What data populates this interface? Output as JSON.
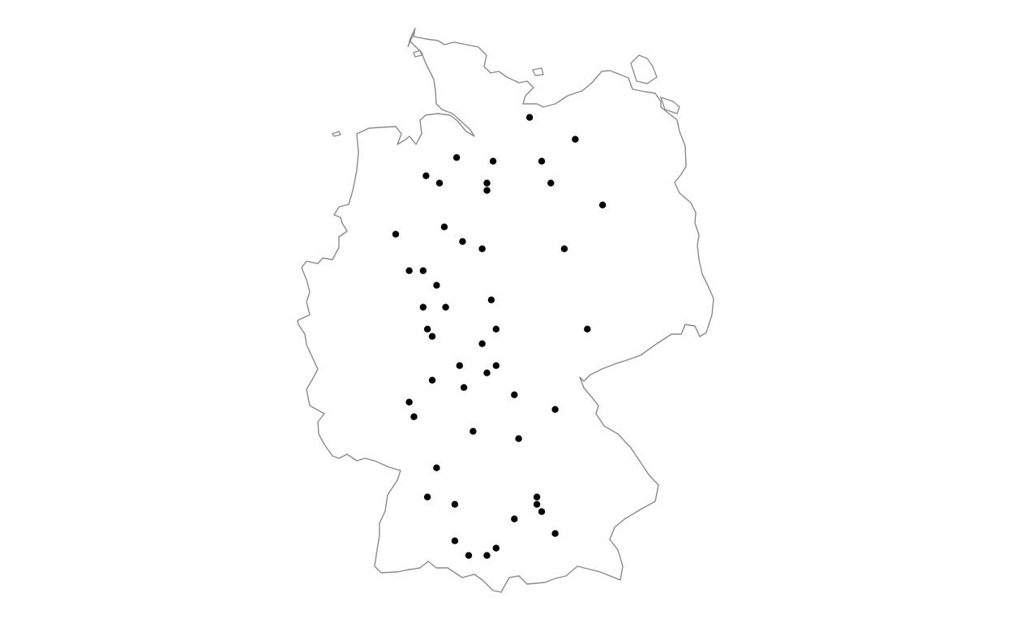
{
  "map": {
    "region": "Germany",
    "background_color": "#ffffff",
    "border_color": "#8a8a8a",
    "marker_color": "#000000",
    "markers": [
      {
        "lon": 10.67,
        "lat": 54.17
      },
      {
        "lon": 11.92,
        "lat": 53.87
      },
      {
        "lon": 8.67,
        "lat": 53.62
      },
      {
        "lon": 9.67,
        "lat": 53.57
      },
      {
        "lon": 11.0,
        "lat": 53.57
      },
      {
        "lon": 7.83,
        "lat": 53.37
      },
      {
        "lon": 8.2,
        "lat": 53.27
      },
      {
        "lon": 9.5,
        "lat": 53.27
      },
      {
        "lon": 9.5,
        "lat": 53.17
      },
      {
        "lon": 11.25,
        "lat": 53.27
      },
      {
        "lon": 12.67,
        "lat": 52.97
      },
      {
        "lon": 8.33,
        "lat": 52.67
      },
      {
        "lon": 7.0,
        "lat": 52.57
      },
      {
        "lon": 8.83,
        "lat": 52.47
      },
      {
        "lon": 9.37,
        "lat": 52.37
      },
      {
        "lon": 11.62,
        "lat": 52.37
      },
      {
        "lon": 7.37,
        "lat": 52.07
      },
      {
        "lon": 7.75,
        "lat": 52.07
      },
      {
        "lon": 8.12,
        "lat": 51.87
      },
      {
        "lon": 9.62,
        "lat": 51.67
      },
      {
        "lon": 7.75,
        "lat": 51.57
      },
      {
        "lon": 8.37,
        "lat": 51.57
      },
      {
        "lon": 7.87,
        "lat": 51.27
      },
      {
        "lon": 8.0,
        "lat": 51.17
      },
      {
        "lon": 9.75,
        "lat": 51.27
      },
      {
        "lon": 12.25,
        "lat": 51.27
      },
      {
        "lon": 9.37,
        "lat": 51.07
      },
      {
        "lon": 8.75,
        "lat": 50.77
      },
      {
        "lon": 9.75,
        "lat": 50.77
      },
      {
        "lon": 9.5,
        "lat": 50.67
      },
      {
        "lon": 8.0,
        "lat": 50.57
      },
      {
        "lon": 8.87,
        "lat": 50.47
      },
      {
        "lon": 10.25,
        "lat": 50.37
      },
      {
        "lon": 7.37,
        "lat": 50.27
      },
      {
        "lon": 11.37,
        "lat": 50.17
      },
      {
        "lon": 7.5,
        "lat": 50.07
      },
      {
        "lon": 9.12,
        "lat": 49.87
      },
      {
        "lon": 10.37,
        "lat": 49.77
      },
      {
        "lon": 8.12,
        "lat": 49.37
      },
      {
        "lon": 10.87,
        "lat": 48.97
      },
      {
        "lon": 10.87,
        "lat": 48.87
      },
      {
        "lon": 7.87,
        "lat": 48.97
      },
      {
        "lon": 8.62,
        "lat": 48.87
      },
      {
        "lon": 11.0,
        "lat": 48.77
      },
      {
        "lon": 10.25,
        "lat": 48.67
      },
      {
        "lon": 11.37,
        "lat": 48.47
      },
      {
        "lon": 8.62,
        "lat": 48.37
      },
      {
        "lon": 9.75,
        "lat": 48.27
      },
      {
        "lon": 9.0,
        "lat": 48.17
      },
      {
        "lon": 9.5,
        "lat": 48.17
      }
    ]
  }
}
